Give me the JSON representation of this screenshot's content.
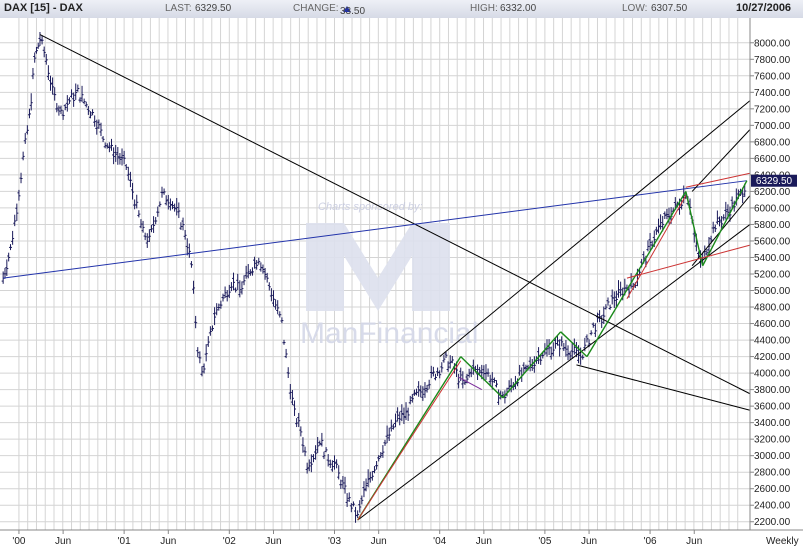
{
  "header": {
    "symbol": "DAX [15] - DAX",
    "last_label": "LAST:",
    "last_value": "6329.50",
    "change_label": "CHANGE:",
    "change_value": "33.50",
    "high_label": "HIGH:",
    "high_value": "6332.00",
    "low_label": "LOW:",
    "low_value": "6307.50",
    "date": "10/27/2006"
  },
  "watermark": {
    "sponsor_text": "Charts sponsored by:",
    "brand": "ManFinancial"
  },
  "colors": {
    "price": "#1a1a5a",
    "grid": "#d4d4d4",
    "trend_black": "#000000",
    "trend_blue": "#2233aa",
    "trend_green": "#1a8a1a",
    "trend_red": "#cc3333",
    "trend_purple": "#7a2a9a",
    "last_price_box": "#1a1a5a"
  },
  "chart_data": {
    "type": "line",
    "title": "DAX [15] - DAX",
    "period": "Weekly",
    "y_axis": {
      "ylim": [
        2100,
        8300
      ],
      "ticks": [
        2200,
        2400,
        2600,
        2800,
        3000,
        3200,
        3400,
        3600,
        3800,
        4000,
        4200,
        4400,
        4600,
        4800,
        5000,
        5200,
        5400,
        5600,
        5800,
        6000,
        6200,
        6400,
        6600,
        6800,
        7000,
        7200,
        7400,
        7600,
        7800,
        8000
      ],
      "tick_labels": [
        "2200.00",
        "2400.00",
        "2600.00",
        "2800.00",
        "3000.00",
        "3200.00",
        "3400.00",
        "3600.00",
        "3800.00",
        "4000.00",
        "4200.00",
        "4400.00",
        "4600.00",
        "4800.00",
        "5000.00",
        "5200.00",
        "5400.00",
        "5600.00",
        "5800.00",
        "6000.00",
        "6200.00",
        "6400.00",
        "6600.00",
        "6800.00",
        "7000.00",
        "7200.00",
        "7400.00",
        "7600.00",
        "7800.00",
        "8000.00"
      ],
      "last_price_label": "6329.50",
      "last_price": 6329.5
    },
    "x_axis": {
      "xlim": [
        1999.82,
        2006.95
      ],
      "tick_labels": [
        {
          "t": 2000.0,
          "label": "'00"
        },
        {
          "t": 2000.42,
          "label": "Jun"
        },
        {
          "t": 2001.0,
          "label": "'01"
        },
        {
          "t": 2001.42,
          "label": "Jun"
        },
        {
          "t": 2002.0,
          "label": "'02"
        },
        {
          "t": 2002.42,
          "label": "Jun"
        },
        {
          "t": 2003.0,
          "label": "'03"
        },
        {
          "t": 2003.42,
          "label": "Jun"
        },
        {
          "t": 2004.0,
          "label": "'04"
        },
        {
          "t": 2004.42,
          "label": "Jun"
        },
        {
          "t": 2005.0,
          "label": "'05"
        },
        {
          "t": 2005.42,
          "label": "Jun"
        },
        {
          "t": 2006.0,
          "label": "'06"
        },
        {
          "t": 2006.42,
          "label": "Jun"
        }
      ],
      "period_label": "Weekly"
    },
    "grid": true,
    "series": [
      {
        "style": "ohlc-weekly",
        "points": [
          [
            1999.85,
            5150
          ],
          [
            1999.92,
            5500
          ],
          [
            1999.98,
            6000
          ],
          [
            2000.04,
            6600
          ],
          [
            2000.1,
            7100
          ],
          [
            2000.15,
            7800
          ],
          [
            2000.2,
            8050
          ],
          [
            2000.26,
            7800
          ],
          [
            2000.32,
            7400
          ],
          [
            2000.4,
            7150
          ],
          [
            2000.48,
            7300
          ],
          [
            2000.56,
            7400
          ],
          [
            2000.64,
            7250
          ],
          [
            2000.72,
            7100
          ],
          [
            2000.8,
            6850
          ],
          [
            2000.88,
            6700
          ],
          [
            2000.96,
            6600
          ],
          [
            2001.02,
            6500
          ],
          [
            2001.1,
            6100
          ],
          [
            2001.18,
            5700
          ],
          [
            2001.24,
            5600
          ],
          [
            2001.3,
            5900
          ],
          [
            2001.36,
            6150
          ],
          [
            2001.44,
            6100
          ],
          [
            2001.52,
            5900
          ],
          [
            2001.58,
            5700
          ],
          [
            2001.64,
            5300
          ],
          [
            2001.7,
            4300
          ],
          [
            2001.74,
            4000
          ],
          [
            2001.78,
            4200
          ],
          [
            2001.86,
            4700
          ],
          [
            2001.94,
            4900
          ],
          [
            2002.02,
            5100
          ],
          [
            2002.1,
            5000
          ],
          [
            2002.2,
            5250
          ],
          [
            2002.28,
            5400
          ],
          [
            2002.34,
            5200
          ],
          [
            2002.42,
            4900
          ],
          [
            2002.5,
            4600
          ],
          [
            2002.56,
            4000
          ],
          [
            2002.62,
            3500
          ],
          [
            2002.68,
            3300
          ],
          [
            2002.74,
            2900
          ],
          [
            2002.8,
            3000
          ],
          [
            2002.86,
            3200
          ],
          [
            2002.92,
            3000
          ],
          [
            2003.0,
            2900
          ],
          [
            2003.06,
            2700
          ],
          [
            2003.12,
            2500
          ],
          [
            2003.18,
            2350
          ],
          [
            2003.22,
            2250
          ],
          [
            2003.28,
            2550
          ],
          [
            2003.36,
            2800
          ],
          [
            2003.44,
            3050
          ],
          [
            2003.52,
            3250
          ],
          [
            2003.6,
            3450
          ],
          [
            2003.68,
            3500
          ],
          [
            2003.76,
            3700
          ],
          [
            2003.84,
            3800
          ],
          [
            2003.92,
            3950
          ],
          [
            2004.0,
            4050
          ],
          [
            2004.06,
            4150
          ],
          [
            2004.12,
            4100
          ],
          [
            2004.18,
            3950
          ],
          [
            2004.24,
            3850
          ],
          [
            2004.3,
            4050
          ],
          [
            2004.36,
            4000
          ],
          [
            2004.42,
            4050
          ],
          [
            2004.48,
            3950
          ],
          [
            2004.54,
            3800
          ],
          [
            2004.6,
            3700
          ],
          [
            2004.66,
            3800
          ],
          [
            2004.74,
            3950
          ],
          [
            2004.82,
            4000
          ],
          [
            2004.9,
            4150
          ],
          [
            2004.98,
            4250
          ],
          [
            2005.06,
            4300
          ],
          [
            2005.14,
            4350
          ],
          [
            2005.2,
            4300
          ],
          [
            2005.28,
            4250
          ],
          [
            2005.34,
            4200
          ],
          [
            2005.4,
            4350
          ],
          [
            2005.46,
            4550
          ],
          [
            2005.54,
            4650
          ],
          [
            2005.62,
            4850
          ],
          [
            2005.7,
            4950
          ],
          [
            2005.78,
            5050
          ],
          [
            2005.84,
            5050
          ],
          [
            2005.9,
            5250
          ],
          [
            2005.96,
            5400
          ],
          [
            2006.02,
            5600
          ],
          [
            2006.08,
            5750
          ],
          [
            2006.14,
            5850
          ],
          [
            2006.2,
            5950
          ],
          [
            2006.28,
            6050
          ],
          [
            2006.34,
            6200
          ],
          [
            2006.38,
            6050
          ],
          [
            2006.42,
            5650
          ],
          [
            2006.46,
            5400
          ],
          [
            2006.5,
            5350
          ],
          [
            2006.56,
            5600
          ],
          [
            2006.62,
            5800
          ],
          [
            2006.68,
            5850
          ],
          [
            2006.74,
            5950
          ],
          [
            2006.8,
            6050
          ],
          [
            2006.86,
            6150
          ],
          [
            2006.92,
            6329.5
          ]
        ]
      }
    ],
    "trendlines": [
      {
        "color": "trend_black",
        "from": [
          2000.2,
          8100
        ],
        "to": [
          2006.95,
          3750
        ]
      },
      {
        "color": "trend_blue",
        "from": [
          1999.85,
          5150
        ],
        "to": [
          2006.92,
          6330
        ]
      },
      {
        "color": "trend_black",
        "from": [
          2003.22,
          2220
        ],
        "to": [
          2006.95,
          5800
        ]
      },
      {
        "color": "trend_black",
        "from": [
          2004.0,
          4200
        ],
        "to": [
          2006.95,
          7300
        ]
      },
      {
        "color": "trend_black",
        "from": [
          2005.3,
          4100
        ],
        "to": [
          2006.95,
          3550
        ]
      },
      {
        "color": "trend_black",
        "from": [
          2006.4,
          6200
        ],
        "to": [
          2006.95,
          6950
        ]
      },
      {
        "color": "trend_black",
        "from": [
          2006.4,
          5300
        ],
        "to": [
          2006.95,
          6150
        ]
      },
      {
        "color": "trend_green",
        "from": [
          2003.22,
          2220
        ],
        "to": [
          2004.2,
          4200
        ]
      },
      {
        "color": "trend_green",
        "from": [
          2004.2,
          4200
        ],
        "to": [
          2004.6,
          3700
        ]
      },
      {
        "color": "trend_green",
        "from": [
          2004.6,
          3700
        ],
        "to": [
          2005.15,
          4500
        ]
      },
      {
        "color": "trend_green",
        "from": [
          2005.15,
          4500
        ],
        "to": [
          2005.4,
          4200
        ]
      },
      {
        "color": "trend_green",
        "from": [
          2005.4,
          4200
        ],
        "to": [
          2006.34,
          6200
        ]
      },
      {
        "color": "trend_green",
        "from": [
          2006.34,
          6200
        ],
        "to": [
          2006.5,
          5300
        ]
      },
      {
        "color": "trend_green",
        "from": [
          2006.5,
          5300
        ],
        "to": [
          2006.92,
          6330
        ]
      },
      {
        "color": "trend_red",
        "from": [
          2003.22,
          2220
        ],
        "to": [
          2004.2,
          4150
        ]
      },
      {
        "color": "trend_red",
        "from": [
          2005.78,
          4900
        ],
        "to": [
          2006.34,
          6150
        ]
      },
      {
        "color": "trend_red",
        "from": [
          2006.34,
          6250
        ],
        "to": [
          2006.95,
          6420
        ]
      },
      {
        "color": "trend_red",
        "from": [
          2005.78,
          5150
        ],
        "to": [
          2006.95,
          5550
        ]
      },
      {
        "color": "trend_purple",
        "from": [
          2004.18,
          3950
        ],
        "to": [
          2004.4,
          3800
        ]
      }
    ]
  }
}
